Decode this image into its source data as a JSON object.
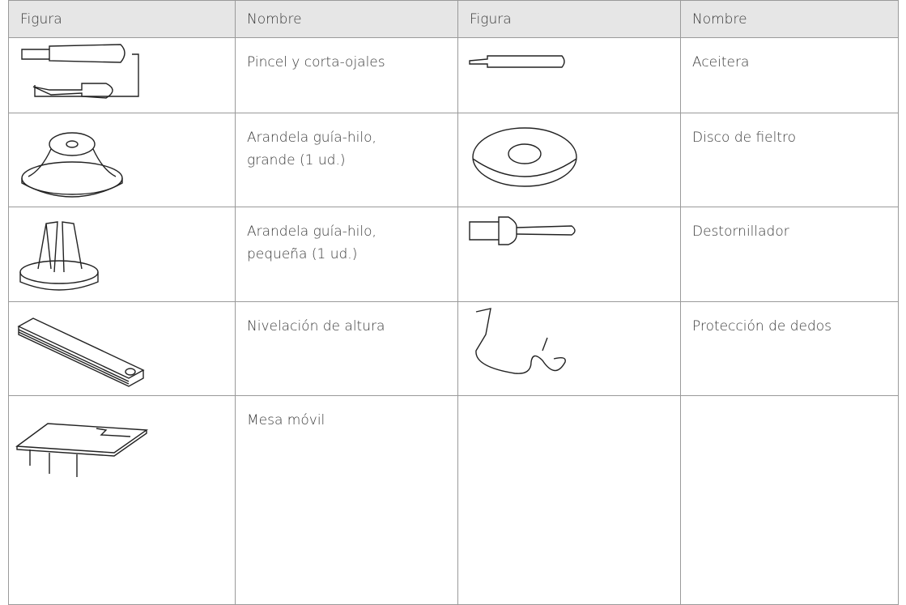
{
  "table": {
    "header": [
      "Figura",
      "Nombre",
      "Figura",
      "Nombre"
    ],
    "rows": [
      [
        "Pincel y corta-ojales",
        "Aceitera"
      ],
      [
        "Arandela guía-hilo,\ngrande (1 ud.)",
        "Disco de fieltro"
      ],
      [
        "Arandela guía-hilo,\npequeña (1 ud.)",
        "Destornillador"
      ],
      [
        "Nivelación de altura",
        "Protección de dedos"
      ],
      [
        "Mesa móvil"
      ]
    ]
  }
}
